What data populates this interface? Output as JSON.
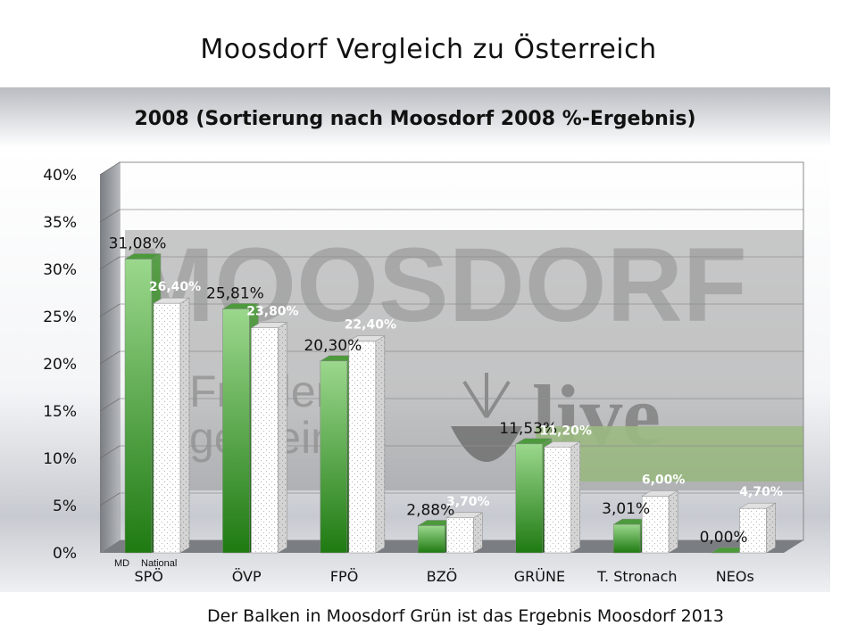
{
  "page": {
    "title": "Moosdorf  Vergleich zu Österreich",
    "footnote": "Der Balken in Moosdorf Grün ist das Ergebnis Moosdorf 2013"
  },
  "watermark": {
    "logo_text": "MOOSDORF",
    "logo_sub": "live",
    "slogan_line1": "Friedens",
    "slogan_line2": "gemeinde"
  },
  "colors": {
    "moosdorf_bar": "#3a9a2a",
    "national_bar": "#ffffff",
    "national_label": "#ffffff"
  },
  "chart_data": {
    "type": "bar",
    "title": "2008 (Sortierung nach Moosdorf 2008 %-Ergebnis)",
    "categories": [
      "SPÖ",
      "ÖVP",
      "FPÖ",
      "BZÖ",
      "GRÜNE",
      "T. Stronach",
      "NEOs"
    ],
    "series": [
      {
        "name": "MD",
        "values": [
          31.08,
          25.81,
          20.3,
          2.88,
          11.53,
          3.01,
          0.0
        ],
        "labels": [
          "31,08%",
          "25,81%",
          "20,30%",
          "2,88%",
          "11,53%",
          "3,01%",
          "0,00%"
        ]
      },
      {
        "name": "National",
        "values": [
          26.4,
          23.8,
          22.4,
          3.7,
          11.2,
          6.0,
          4.7
        ],
        "labels": [
          "26,40%",
          "23,80%",
          "22,40%",
          "3,70%",
          "11,20%",
          "6,00%",
          "4,70%"
        ]
      }
    ],
    "y_ticks": [
      "0%",
      "5%",
      "10%",
      "15%",
      "20%",
      "25%",
      "30%",
      "35%",
      "40%"
    ],
    "ylim": [
      0,
      40
    ],
    "grid": true,
    "legend": "below first category"
  }
}
